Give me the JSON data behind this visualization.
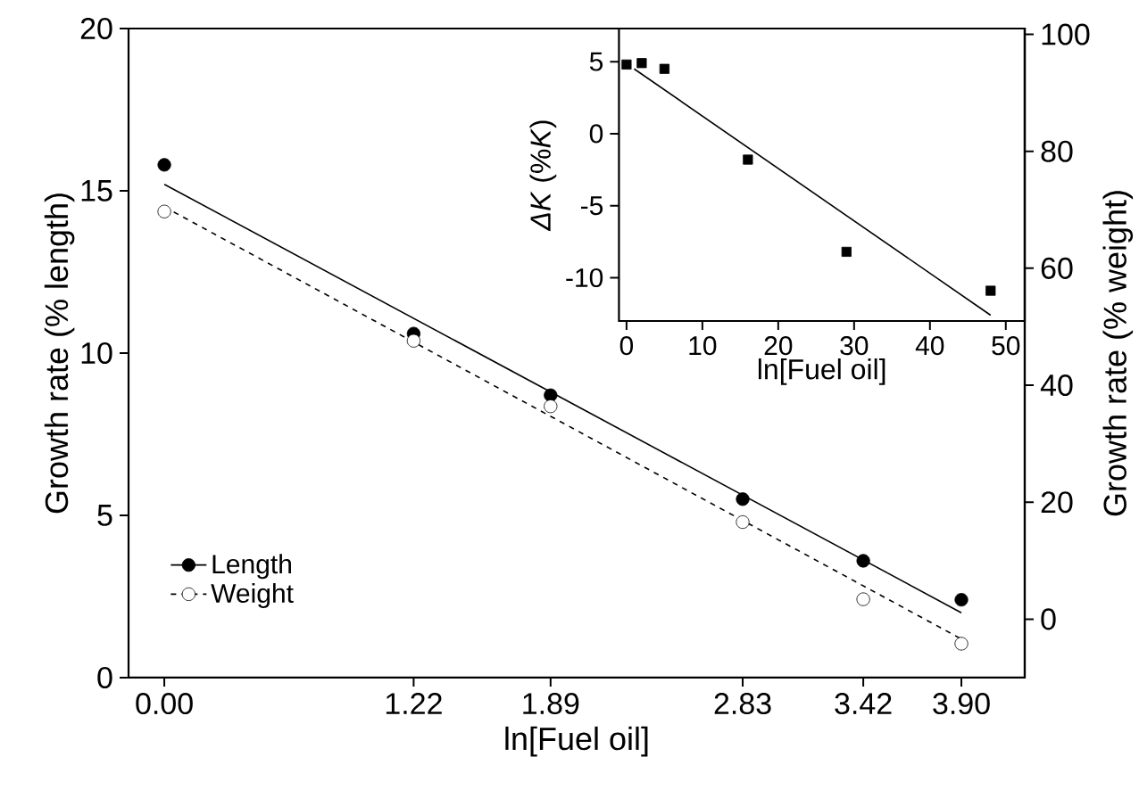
{
  "chart_data": [
    {
      "type": "scatter",
      "xlabel": "ln[Fuel oil]",
      "ylabel": "Growth rate (% length)",
      "y2label": "Growth rate (% weight)",
      "xlim": [
        -0.175,
        4.21
      ],
      "xticks": [
        {
          "value": 0,
          "label": "0.00"
        },
        1.22,
        1.89,
        2.83,
        3.42,
        {
          "value": 3.9,
          "label": "3.90"
        }
      ],
      "ylim": [
        0,
        20
      ],
      "yticks": [
        0,
        5,
        10,
        15,
        20
      ],
      "y2lim": [
        -10,
        101
      ],
      "y2ticks": [
        0,
        20,
        40,
        60,
        80,
        100
      ],
      "legend": "bottom left",
      "series": [
        {
          "name": "Length",
          "marker": "circle",
          "line_style": "solid",
          "color": "#000000",
          "x": [
            0,
            1.22,
            1.89,
            2.83,
            3.42,
            3.9
          ],
          "values": [
            15.8,
            10.6,
            8.7,
            5.5,
            3.6,
            2.4
          ]
        },
        {
          "name": "Weight",
          "marker": "circle",
          "line_style": "dashed",
          "color": "#ffffff",
          "axis": "y2",
          "x": [
            0,
            1.22,
            1.89,
            2.83,
            3.42,
            3.9
          ],
          "values": [
            69.7,
            47.6,
            36.4,
            16.6,
            3.4,
            -4.2
          ]
        },
        {
          "type": "line",
          "marker": "none",
          "line_style": "solid",
          "color": "#000000",
          "x": [
            0,
            3.9
          ],
          "values": [
            15.2,
            2.0
          ]
        },
        {
          "type": "line",
          "marker": "none",
          "line_style": "dashed",
          "color": "#000000",
          "axis": "y2",
          "x": [
            0,
            3.9
          ],
          "values": [
            70.5,
            -3.4
          ]
        }
      ]
    },
    {
      "type": "scatter",
      "xlabel": "ln[Fuel oil]",
      "ylabel": "*ΔK* (%*K*)",
      "xlim": [
        -1,
        52.5
      ],
      "xticks": [
        0,
        10,
        20,
        30,
        40,
        50
      ],
      "ylim": [
        -13,
        7.3
      ],
      "yticks": [
        -10,
        -5,
        0,
        5
      ],
      "series": [
        {
          "marker": "square",
          "color": "#000000",
          "x": [
            0,
            2,
            5,
            16,
            29,
            48
          ],
          "values": [
            4.8,
            4.9,
            4.5,
            -1.8,
            -8.2,
            -10.9
          ]
        },
        {
          "type": "line",
          "marker": "none",
          "line_style": "solid",
          "color": "#000000",
          "x": [
            1,
            48
          ],
          "values": [
            4.5,
            -12.6
          ]
        }
      ]
    }
  ]
}
